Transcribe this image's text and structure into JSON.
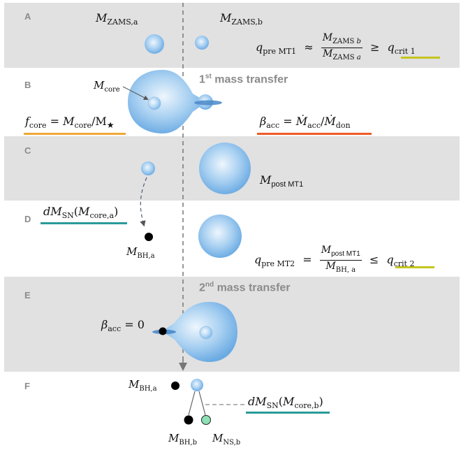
{
  "panels": [
    {
      "id": "A"
    },
    {
      "id": "B"
    },
    {
      "id": "C"
    },
    {
      "id": "D"
    },
    {
      "id": "E"
    },
    {
      "id": "F"
    }
  ],
  "labels": {
    "mass_transfer_1": {
      "ord": "1",
      "sup": "st",
      "rest": " mass transfer"
    },
    "mass_transfer_2": {
      "ord": "2",
      "sup": "nd",
      "rest": " mass transfer"
    },
    "m_zams_a": "M_ZAMS,a",
    "m_zams_b": "M_ZAMS,b",
    "m_core": "M_core",
    "m_post_mt1": "M_post MT1",
    "m_bh_a": "M_BH,a",
    "m_bh_b": "M_BH,b",
    "m_ns_b": "M_NS,b",
    "beta_zero": "β_acc = 0"
  },
  "equations": {
    "q_pre_mt1": "q_pre MT1 ≈ M_ZAMS b / M_ZAMS a ≥ q_crit 1",
    "f_core": "f_core = M_core / M★",
    "beta_acc": "β_acc = Ṁ_acc / Ṁ_don",
    "dm_sn_core_a": "dM_SN(M_core,a)",
    "q_pre_mt2": "q_pre MT2 = M_post MT1 / M_BH, a ≤ q_crit 2",
    "dm_sn_core_b": "dM_SN(M_core,b)"
  },
  "colors": {
    "band": "#e1e1e1",
    "panel_label": "#8b8b8b",
    "star_gradient_inner": "#eef6fd",
    "star_gradient_outer": "#6aaae3",
    "underline_yellow": "#c5c520",
    "underline_orange": "#f0a838",
    "underline_red": "#ee5a2a",
    "underline_teal": "#2a9a9a",
    "ns_green": "#8fe0b4",
    "bh_black": "#000000",
    "divider": "#777777"
  }
}
